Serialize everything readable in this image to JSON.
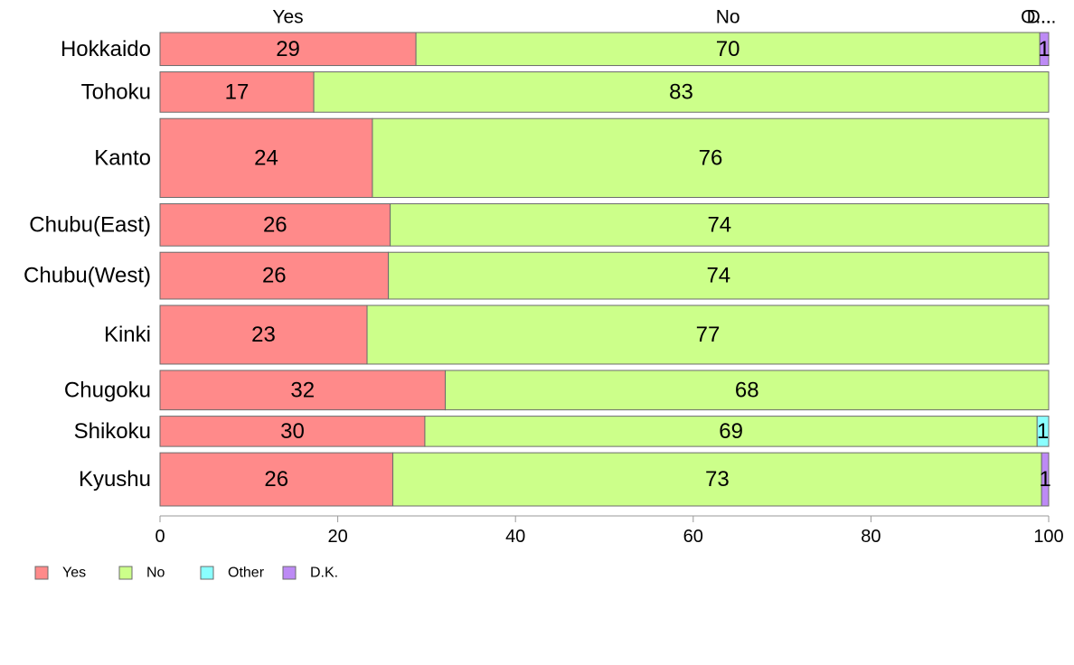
{
  "chart_data": {
    "type": "bar",
    "orientation": "horizontal",
    "stacked": true,
    "categories": [
      "Hokkaido",
      "Tohoku",
      "Kanto",
      "Chubu(East)",
      "Chubu(West)",
      "Kinki",
      "Chugoku",
      "Shikoku",
      "Kyushu"
    ],
    "relative_bar_widths": [
      36,
      44,
      86,
      46,
      51,
      64,
      43,
      33,
      58
    ],
    "series": [
      {
        "name": "Yes",
        "color": "#FF8A8A",
        "values": [
          28.8,
          17.3,
          23.9,
          25.9,
          25.7,
          23.3,
          32.1,
          29.8,
          26.2
        ],
        "data_labels": [
          "29",
          "17",
          "24",
          "26",
          "26",
          "23",
          "32",
          "30",
          "26"
        ]
      },
      {
        "name": "No",
        "color": "#CCFF8A",
        "values": [
          70.2,
          82.7,
          76.1,
          74.1,
          74.3,
          76.7,
          67.9,
          68.9,
          73.0
        ],
        "data_labels": [
          "70",
          "83",
          "76",
          "74",
          "74",
          "77",
          "68",
          "69",
          "73"
        ]
      },
      {
        "name": "Other",
        "color": "#8AFFFF",
        "values": [
          0,
          0,
          0,
          0,
          0,
          0,
          0,
          1.3,
          0
        ],
        "data_labels": [
          "",
          "",
          "",
          "",
          "",
          "",
          "",
          "1",
          ""
        ]
      },
      {
        "name": "D.K.",
        "color": "#BD8AF5",
        "values": [
          1.0,
          0,
          0,
          0,
          0,
          0,
          0,
          0,
          0.8
        ],
        "data_labels": [
          "1",
          "",
          "",
          "",
          "",
          "",
          "",
          "",
          "1"
        ]
      }
    ],
    "top_labels": [
      "Yes",
      "No",
      "O...",
      "D..."
    ],
    "xlim": [
      0,
      100
    ],
    "x_ticks": [
      "0",
      "20",
      "40",
      "60",
      "80",
      "100"
    ],
    "grid": false,
    "legend_position": "bottom-left",
    "legend": [
      "Yes",
      "No",
      "Other",
      "D.K."
    ]
  }
}
